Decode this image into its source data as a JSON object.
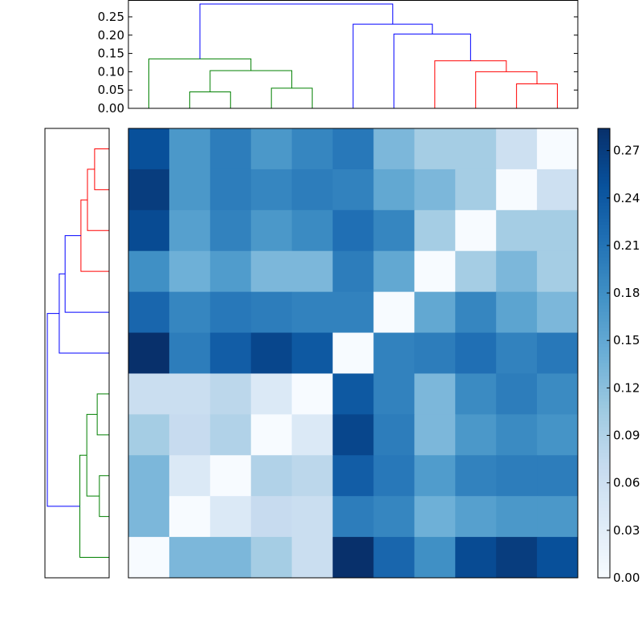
{
  "chart_data": {
    "type": "heatmap",
    "title": "",
    "colormap": "Blues",
    "vmin": 0.0,
    "vmax": 0.284,
    "colorbar_ticks": [
      "0.00",
      "0.03",
      "0.06",
      "0.09",
      "0.12",
      "0.15",
      "0.18",
      "0.21",
      "0.24",
      "0.27"
    ],
    "colorbar_tick_values": [
      0,
      0.03,
      0.06,
      0.09,
      0.12,
      0.15,
      0.18,
      0.21,
      0.24,
      0.27
    ],
    "matrix": [
      [
        0.25,
        0.17,
        0.2,
        0.17,
        0.19,
        0.205,
        0.13,
        0.1,
        0.1,
        0.06,
        0.0
      ],
      [
        0.27,
        0.17,
        0.2,
        0.19,
        0.2,
        0.195,
        0.15,
        0.13,
        0.1,
        0.0,
        0.06
      ],
      [
        0.255,
        0.16,
        0.195,
        0.17,
        0.185,
        0.215,
        0.19,
        0.1,
        0.0,
        0.1,
        0.1
      ],
      [
        0.18,
        0.14,
        0.165,
        0.13,
        0.13,
        0.2,
        0.15,
        0.0,
        0.1,
        0.13,
        0.1
      ],
      [
        0.225,
        0.19,
        0.205,
        0.2,
        0.195,
        0.195,
        0.0,
        0.15,
        0.19,
        0.155,
        0.13
      ],
      [
        0.284,
        0.2,
        0.235,
        0.26,
        0.24,
        0.0,
        0.195,
        0.2,
        0.215,
        0.195,
        0.205
      ],
      [
        0.065,
        0.065,
        0.08,
        0.04,
        0.0,
        0.24,
        0.195,
        0.13,
        0.185,
        0.2,
        0.185
      ],
      [
        0.1,
        0.07,
        0.09,
        0.0,
        0.04,
        0.26,
        0.2,
        0.13,
        0.17,
        0.185,
        0.175
      ],
      [
        0.13,
        0.04,
        0.0,
        0.09,
        0.08,
        0.235,
        0.205,
        0.165,
        0.195,
        0.2,
        0.2
      ],
      [
        0.13,
        0.0,
        0.04,
        0.07,
        0.065,
        0.2,
        0.19,
        0.14,
        0.16,
        0.17,
        0.17
      ],
      [
        0.0,
        0.13,
        0.13,
        0.1,
        0.065,
        0.284,
        0.225,
        0.18,
        0.255,
        0.27,
        0.25
      ]
    ],
    "dendrogram": {
      "ylim": [
        0,
        0.296
      ],
      "yticks": [
        "0.00",
        "0.05",
        "0.10",
        "0.15",
        "0.20",
        "0.25"
      ],
      "ytick_values": [
        0,
        0.05,
        0.1,
        0.15,
        0.2,
        0.25
      ],
      "colors": {
        "green": "#008000",
        "red": "#ff0000",
        "blue": "#0000ff"
      },
      "links": [
        {
          "leaf_pos": [
            1,
            1,
            2,
            2
          ],
          "height": [
            0,
            0.045,
            0.045,
            0
          ],
          "color": "green"
        },
        {
          "leaf_pos": [
            3,
            3,
            4,
            4
          ],
          "height": [
            0,
            0.055,
            0.055,
            0
          ],
          "color": "green"
        },
        {
          "leaf_pos": [
            1.5,
            1.5,
            3.5,
            3.5
          ],
          "height": [
            0.045,
            0.103,
            0.103,
            0.055
          ],
          "color": "green"
        },
        {
          "leaf_pos": [
            0,
            0,
            2.5,
            2.5
          ],
          "height": [
            0,
            0.135,
            0.135,
            0.103
          ],
          "color": "green"
        },
        {
          "leaf_pos": [
            9,
            9,
            10,
            10
          ],
          "height": [
            0,
            0.067,
            0.067,
            0
          ],
          "color": "red"
        },
        {
          "leaf_pos": [
            8,
            8,
            9.5,
            9.5
          ],
          "height": [
            0,
            0.1,
            0.1,
            0.067
          ],
          "color": "red"
        },
        {
          "leaf_pos": [
            7,
            7,
            8.75,
            8.75
          ],
          "height": [
            0,
            0.13,
            0.13,
            0.1
          ],
          "color": "red"
        },
        {
          "leaf_pos": [
            6,
            6,
            7.875,
            7.875
          ],
          "height": [
            0,
            0.203,
            0.203,
            0.13
          ],
          "color": "blue"
        },
        {
          "leaf_pos": [
            5,
            5,
            6.94,
            6.94
          ],
          "height": [
            0,
            0.23,
            0.23,
            0.203
          ],
          "color": "blue"
        },
        {
          "leaf_pos": [
            1.25,
            1.25,
            5.97,
            5.97
          ],
          "height": [
            0.135,
            0.285,
            0.285,
            0.23
          ],
          "color": "blue"
        }
      ]
    },
    "xlabel": "",
    "ylabel": "",
    "grid": false
  }
}
